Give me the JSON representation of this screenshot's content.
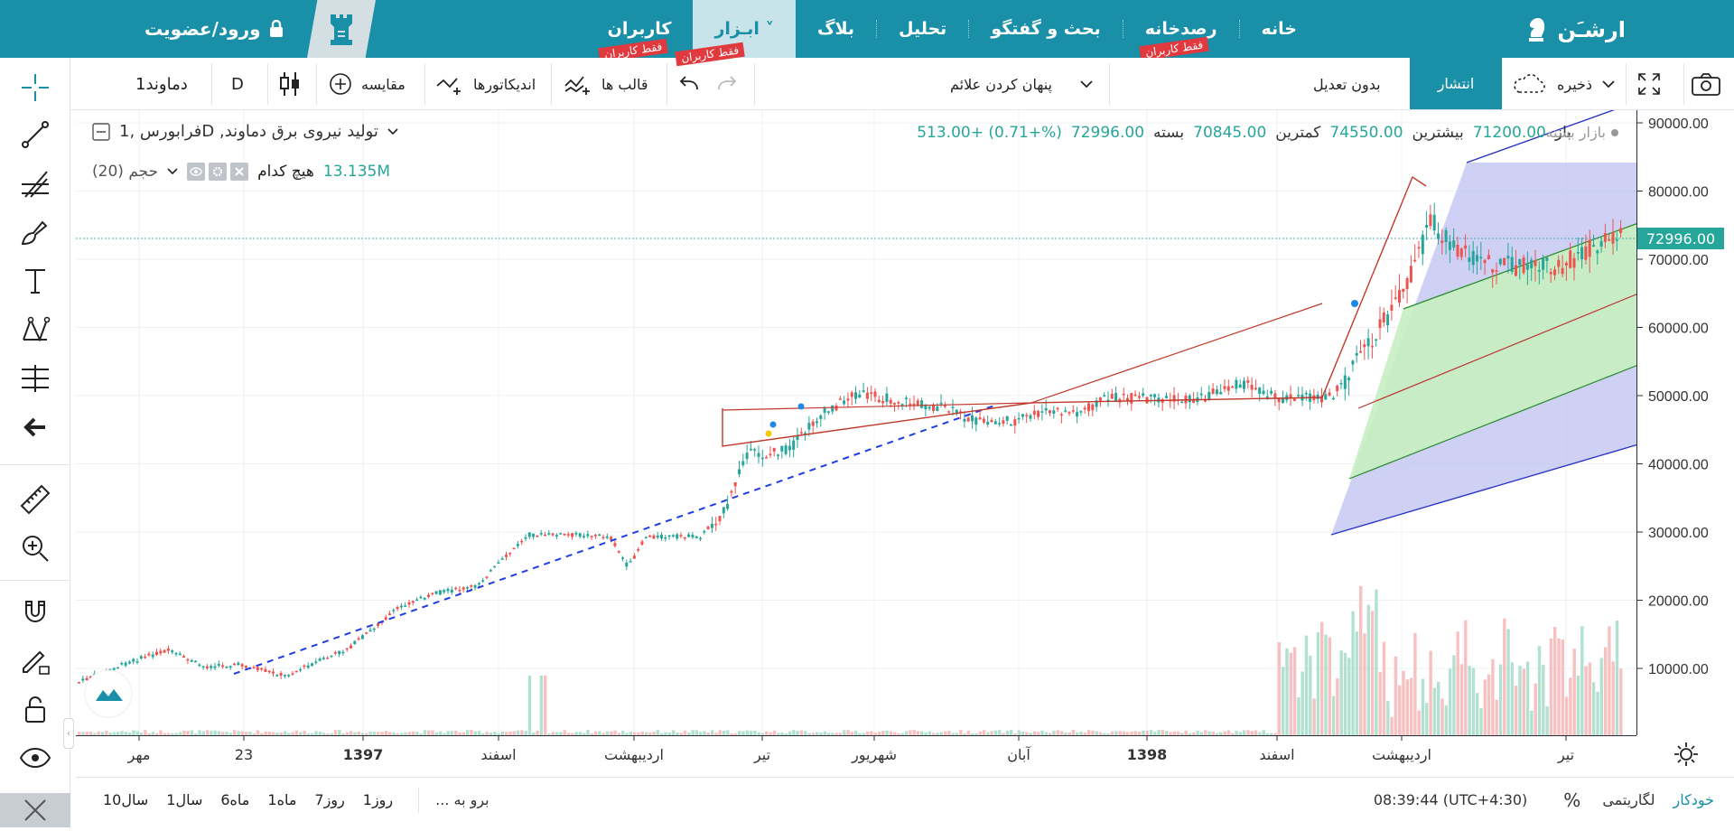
{
  "nav": {
    "brand": "ارشـَن",
    "items": [
      {
        "label": "خانه"
      },
      {
        "label": "رصدخانه",
        "badge": "فقط کاربران"
      },
      {
        "label": "بحث و گفتگو"
      },
      {
        "label": "تحلیل"
      },
      {
        "label": "بلاگ"
      },
      {
        "label": "ابـزار ˅"
      },
      {
        "label": "کاربران",
        "badge": "فقط کاربران"
      }
    ],
    "login": "ورود/عضویت"
  },
  "toolbar": {
    "symbol": "دماوند1",
    "interval": "D",
    "compare": "مقایسه",
    "indicators": "اندیکاتورها",
    "templates": "قالب ها",
    "hide_marks": "پنهان کردن علائم",
    "no_adjust": "بدون تعدیل",
    "publish": "انتشار",
    "save": "ذخیره"
  },
  "legend": {
    "market_status": "بازار بسته",
    "symbol_line": "فرابورس ,1D ,تولید نیروی برق دماوند",
    "open_label": "باز",
    "open": "71200.00",
    "high_label": "بیشترین",
    "high": "74550.00",
    "low_label": "کمترین",
    "low": "70845.00",
    "close_label": "بسته",
    "close": "72996.00",
    "change": "513.00+ (0.71+%)",
    "volume_label": "حجم (20)",
    "volume_sub": "هیچ کدام",
    "volume_value": "13.135M"
  },
  "price_axis": {
    "ticks": [
      "90000.00",
      "80000.00",
      "70000.00",
      "60000.00",
      "50000.00",
      "40000.00",
      "30000.00",
      "20000.00",
      "10000.00"
    ],
    "current": "72996.00"
  },
  "time_axis": {
    "ticks": [
      "مهر",
      "23",
      "1397",
      "اسفند",
      "اردیبهشت",
      "تیر",
      "شهریور",
      "آبان",
      "1398",
      "اسفند",
      "اردیبهشت",
      "تیر"
    ]
  },
  "bottom": {
    "ranges": [
      "سال10",
      "سال1",
      "ماه6",
      "ماه1",
      "روز7",
      "روز1"
    ],
    "goto": "... برو به",
    "time": "08:39:44 (UTC+4:30)",
    "percent": "%",
    "log": "لگاریتمی",
    "auto": "خودکار"
  },
  "colors": {
    "brand": "#1a8fa8",
    "up": "#26a69a",
    "down": "#ef5350",
    "badge": "#e0393e"
  }
}
